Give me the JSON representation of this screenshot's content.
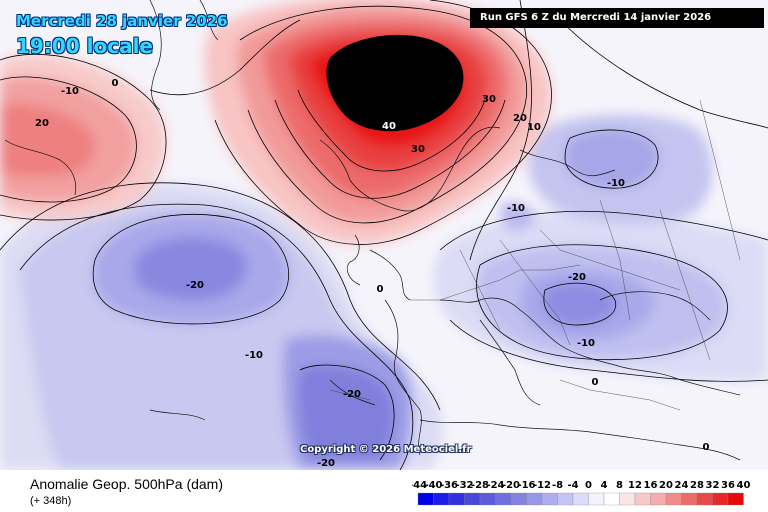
{
  "header": {
    "date": "Mercredi 28 janvier 2026",
    "time": "19:00 locale",
    "run": "Run GFS 6 Z du Mercredi 14 janvier 2026"
  },
  "copyright": "Copyright © 2026 Meteociel.fr",
  "footer": {
    "title": "Anomalie Geop. 500hPa (dam)",
    "lead": "(+ 348h)"
  },
  "legend": {
    "ticks": [
      "-44",
      "-40",
      "-36",
      "-32",
      "-28",
      "-24",
      "-20",
      "-16",
      "-12",
      "-8",
      "-4",
      "0",
      "4",
      "8",
      "12",
      "16",
      "20",
      "24",
      "28",
      "32",
      "36",
      "40"
    ],
    "colors": [
      "#0000e8",
      "#1c1ce8",
      "#3030e0",
      "#4848d8",
      "#5c5cd8",
      "#7070dc",
      "#8484e0",
      "#9898e8",
      "#aeaeee",
      "#c4c4f4",
      "#dcdcfa",
      "#f2f2ff",
      "#ffffff",
      "#fbe4e4",
      "#f8c8c8",
      "#f4acac",
      "#f08c8c",
      "#ec6c6c",
      "#e84848",
      "#e82828",
      "#e80a0a"
    ]
  },
  "contour_labels": [
    {
      "text": "0"
    },
    {
      "text": "-10"
    },
    {
      "text": "20"
    },
    {
      "text": "40"
    },
    {
      "text": "30"
    },
    {
      "text": "30"
    },
    {
      "text": "20"
    },
    {
      "text": "10"
    },
    {
      "text": "-10"
    },
    {
      "text": "-10"
    },
    {
      "text": "-20"
    },
    {
      "text": "0"
    },
    {
      "text": "-10"
    },
    {
      "text": "-20"
    },
    {
      "text": "-20"
    },
    {
      "text": "-10"
    },
    {
      "text": "0"
    },
    {
      "text": "-20"
    },
    {
      "text": "0"
    }
  ]
}
